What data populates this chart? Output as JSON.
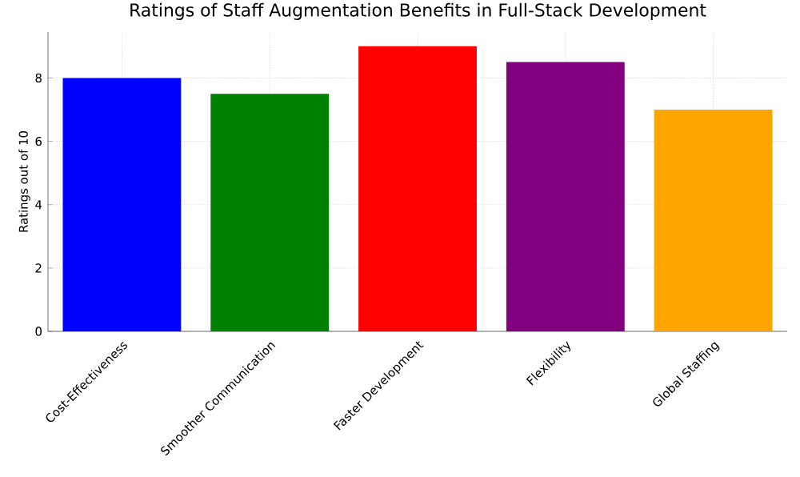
{
  "chart_data": {
    "type": "bar",
    "title": "Ratings of Staff Augmentation Benefits in Full-Stack Development",
    "ylabel": "Ratings out of 10",
    "categories": [
      "Cost-Effectiveness",
      "Smoother Communication",
      "Faster Development",
      "Flexibility",
      "Global Staffing"
    ],
    "values": [
      8,
      7.5,
      9,
      8.5,
      7
    ],
    "colors": [
      "#0000ff",
      "#008000",
      "#ff0000",
      "#800080",
      "#ffa500"
    ],
    "ylim": [
      0,
      9.45
    ],
    "yticks": [
      0,
      2,
      4,
      6,
      8
    ],
    "grid": true
  }
}
